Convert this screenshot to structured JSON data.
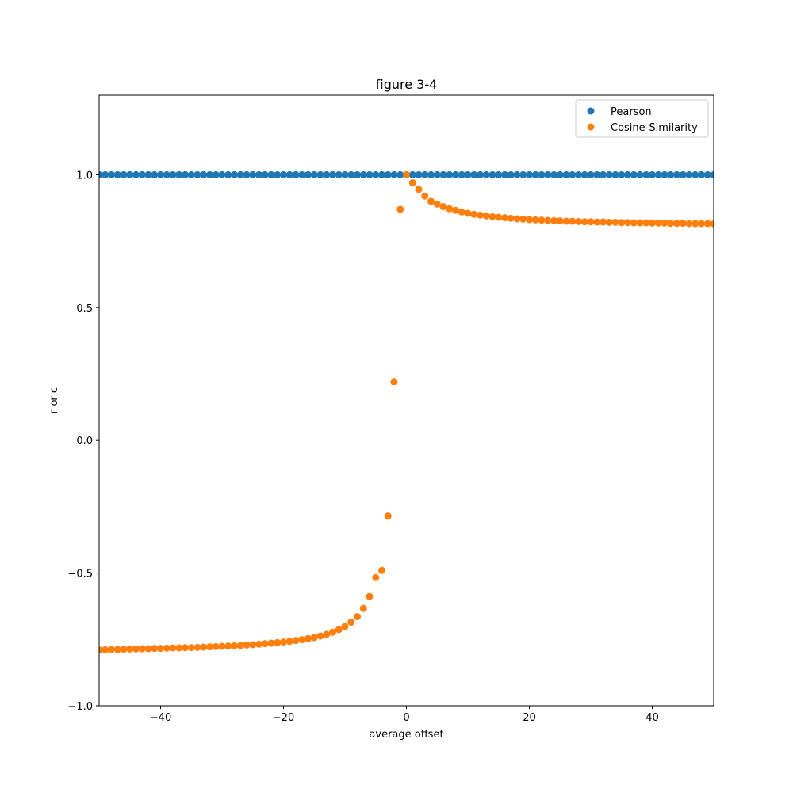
{
  "chart_data": {
    "type": "scatter",
    "title": "figure 3-4",
    "xlabel": "average offset",
    "ylabel": "r or c",
    "xlim": [
      -50,
      50
    ],
    "ylim": [
      -1.0,
      1.3
    ],
    "xticks": [
      -40,
      -20,
      0,
      20,
      40
    ],
    "xtick_labels": [
      "−40",
      "−20",
      "0",
      "20",
      "40"
    ],
    "yticks": [
      -1.0,
      -0.5,
      0.0,
      0.5,
      1.0
    ],
    "ytick_labels": [
      "−1.0",
      "−0.5",
      "0.0",
      "0.5",
      "1.0"
    ],
    "grid": false,
    "legend": "top-right",
    "x": [
      -50,
      -49,
      -48,
      -47,
      -46,
      -45,
      -44,
      -43,
      -42,
      -41,
      -40,
      -39,
      -38,
      -37,
      -36,
      -35,
      -34,
      -33,
      -32,
      -31,
      -30,
      -29,
      -28,
      -27,
      -26,
      -25,
      -24,
      -23,
      -22,
      -21,
      -20,
      -19,
      -18,
      -17,
      -16,
      -15,
      -14,
      -13,
      -12,
      -11,
      -10,
      -9,
      -8,
      -7,
      -6,
      -5,
      -4,
      -3,
      -2,
      -1,
      0,
      1,
      2,
      3,
      4,
      5,
      6,
      7,
      8,
      9,
      10,
      11,
      12,
      13,
      14,
      15,
      16,
      17,
      18,
      19,
      20,
      21,
      22,
      23,
      24,
      25,
      26,
      27,
      28,
      29,
      30,
      31,
      32,
      33,
      34,
      35,
      36,
      37,
      38,
      39,
      40,
      41,
      42,
      43,
      44,
      45,
      46,
      47,
      48,
      49,
      50
    ],
    "series": [
      {
        "name": "Pearson",
        "color": "#1f77b4",
        "values": [
          1,
          1,
          1,
          1,
          1,
          1,
          1,
          1,
          1,
          1,
          1,
          1,
          1,
          1,
          1,
          1,
          1,
          1,
          1,
          1,
          1,
          1,
          1,
          1,
          1,
          1,
          1,
          1,
          1,
          1,
          1,
          1,
          1,
          1,
          1,
          1,
          1,
          1,
          1,
          1,
          1,
          1,
          1,
          1,
          1,
          1,
          1,
          1,
          1,
          1,
          1,
          1,
          1,
          1,
          1,
          1,
          1,
          1,
          1,
          1,
          1,
          1,
          1,
          1,
          1,
          1,
          1,
          1,
          1,
          1,
          1,
          1,
          1,
          1,
          1,
          1,
          1,
          1,
          1,
          1,
          1,
          1,
          1,
          1,
          1,
          1,
          1,
          1,
          1,
          1,
          1,
          1,
          1,
          1,
          1,
          1,
          1,
          1,
          1,
          1,
          1
        ]
      },
      {
        "name": "Cosine-Similarity",
        "color": "#ff7f0e",
        "values": [
          -0.79,
          -0.789,
          -0.788,
          -0.788,
          -0.787,
          -0.786,
          -0.786,
          -0.785,
          -0.785,
          -0.784,
          -0.784,
          -0.783,
          -0.782,
          -0.782,
          -0.781,
          -0.781,
          -0.78,
          -0.779,
          -0.778,
          -0.777,
          -0.776,
          -0.775,
          -0.774,
          -0.773,
          -0.771,
          -0.77,
          -0.768,
          -0.766,
          -0.764,
          -0.762,
          -0.76,
          -0.757,
          -0.754,
          -0.751,
          -0.747,
          -0.743,
          -0.737,
          -0.731,
          -0.723,
          -0.713,
          -0.701,
          -0.685,
          -0.664,
          -0.633,
          -0.588,
          -0.517,
          -0.49,
          -0.285,
          0.22,
          0.87,
          1.0,
          0.97,
          0.945,
          0.92,
          0.9,
          0.89,
          0.88,
          0.872,
          0.866,
          0.86,
          0.855,
          0.851,
          0.848,
          0.845,
          0.842,
          0.84,
          0.838,
          0.836,
          0.834,
          0.833,
          0.831,
          0.83,
          0.829,
          0.828,
          0.827,
          0.826,
          0.825,
          0.825,
          0.824,
          0.823,
          0.823,
          0.822,
          0.822,
          0.821,
          0.821,
          0.82,
          0.82,
          0.819,
          0.819,
          0.819,
          0.818,
          0.818,
          0.818,
          0.817,
          0.817,
          0.817,
          0.816,
          0.816,
          0.816,
          0.816,
          0.815
        ]
      }
    ]
  }
}
